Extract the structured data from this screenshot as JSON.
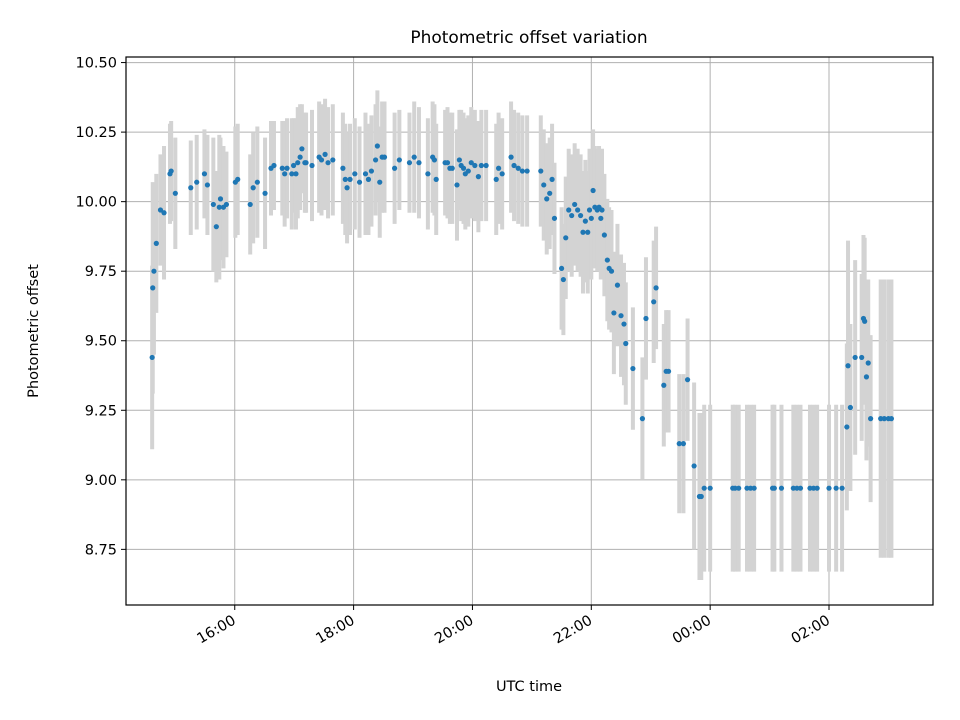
{
  "chart_data": {
    "type": "scatter",
    "title": "Photometric offset variation",
    "xlabel": "UTC time",
    "ylabel": "Photometric offset",
    "grid": true,
    "xlim": [
      14.17,
      27.75
    ],
    "ylim": [
      8.55,
      10.52
    ],
    "x_ticks": [
      {
        "value": 16,
        "label": "16:00"
      },
      {
        "value": 18,
        "label": "18:00"
      },
      {
        "value": 20,
        "label": "20:00"
      },
      {
        "value": 22,
        "label": "22:00"
      },
      {
        "value": 24,
        "label": "00:00"
      },
      {
        "value": 26,
        "label": "02:00"
      }
    ],
    "y_ticks": [
      {
        "value": 8.75,
        "label": "8.75"
      },
      {
        "value": 9.0,
        "label": "9.00"
      },
      {
        "value": 9.25,
        "label": "9.25"
      },
      {
        "value": 9.5,
        "label": "9.50"
      },
      {
        "value": 9.75,
        "label": "9.75"
      },
      {
        "value": 10.0,
        "label": "10.00"
      },
      {
        "value": 10.25,
        "label": "10.25"
      },
      {
        "value": 10.5,
        "label": "10.50"
      }
    ],
    "colors": {
      "point": "#1f77b4",
      "errorbar": "#d3d3d3",
      "grid": "#b0b0b0"
    },
    "series": [
      {
        "name": "offset",
        "points": [
          [
            14.61,
            9.44,
            0.33
          ],
          [
            14.62,
            9.69,
            0.38
          ],
          [
            14.64,
            9.75,
            0.3
          ],
          [
            14.68,
            9.85,
            0.25
          ],
          [
            14.75,
            9.97,
            0.2
          ],
          [
            14.81,
            9.96,
            0.24
          ],
          [
            14.91,
            10.1,
            0.18
          ],
          [
            14.93,
            10.11,
            0.18
          ],
          [
            15.0,
            10.03,
            0.2
          ],
          [
            15.26,
            10.05,
            0.17
          ],
          [
            15.36,
            10.07,
            0.17
          ],
          [
            15.49,
            10.1,
            0.16
          ],
          [
            15.54,
            10.06,
            0.18
          ],
          [
            15.64,
            9.99,
            0.24
          ],
          [
            15.69,
            9.91,
            0.2
          ],
          [
            15.74,
            9.98,
            0.26
          ],
          [
            15.76,
            10.01,
            0.22
          ],
          [
            15.81,
            9.98,
            0.22
          ],
          [
            15.86,
            9.99,
            0.19
          ],
          [
            16.01,
            10.07,
            0.2
          ],
          [
            16.05,
            10.08,
            0.2
          ],
          [
            16.26,
            9.99,
            0.18
          ],
          [
            16.31,
            10.05,
            0.2
          ],
          [
            16.38,
            10.07,
            0.2
          ],
          [
            16.51,
            10.03,
            0.2
          ],
          [
            16.61,
            10.12,
            0.17
          ],
          [
            16.66,
            10.13,
            0.16
          ],
          [
            16.8,
            10.12,
            0.17
          ],
          [
            16.84,
            10.1,
            0.19
          ],
          [
            16.88,
            10.12,
            0.18
          ],
          [
            16.96,
            10.1,
            0.2
          ],
          [
            16.99,
            10.13,
            0.17
          ],
          [
            17.03,
            10.1,
            0.2
          ],
          [
            17.06,
            10.14,
            0.2
          ],
          [
            17.1,
            10.16,
            0.19
          ],
          [
            17.13,
            10.19,
            0.16
          ],
          [
            17.18,
            10.14,
            0.18
          ],
          [
            17.2,
            10.14,
            0.18
          ],
          [
            17.3,
            10.13,
            0.2
          ],
          [
            17.42,
            10.16,
            0.2
          ],
          [
            17.46,
            10.15,
            0.2
          ],
          [
            17.52,
            10.17,
            0.2
          ],
          [
            17.57,
            10.14,
            0.2
          ],
          [
            17.65,
            10.15,
            0.2
          ],
          [
            17.82,
            10.12,
            0.2
          ],
          [
            17.86,
            10.08,
            0.2
          ],
          [
            17.89,
            10.05,
            0.2
          ],
          [
            17.94,
            10.08,
            0.2
          ],
          [
            18.02,
            10.1,
            0.2
          ],
          [
            18.1,
            10.07,
            0.2
          ],
          [
            18.2,
            10.1,
            0.22
          ],
          [
            18.25,
            10.08,
            0.2
          ],
          [
            18.3,
            10.11,
            0.2
          ],
          [
            18.37,
            10.15,
            0.2
          ],
          [
            18.4,
            10.2,
            0.2
          ],
          [
            18.44,
            10.07,
            0.2
          ],
          [
            18.48,
            10.16,
            0.2
          ],
          [
            18.52,
            10.16,
            0.2
          ],
          [
            18.69,
            10.12,
            0.2
          ],
          [
            18.77,
            10.15,
            0.18
          ],
          [
            18.94,
            10.14,
            0.18
          ],
          [
            19.02,
            10.16,
            0.2
          ],
          [
            19.1,
            10.14,
            0.2
          ],
          [
            19.25,
            10.1,
            0.2
          ],
          [
            19.33,
            10.16,
            0.2
          ],
          [
            19.36,
            10.15,
            0.2
          ],
          [
            19.39,
            10.08,
            0.2
          ],
          [
            19.54,
            10.14,
            0.19
          ],
          [
            19.58,
            10.14,
            0.2
          ],
          [
            19.62,
            10.12,
            0.2
          ],
          [
            19.66,
            10.12,
            0.2
          ],
          [
            19.74,
            10.06,
            0.2
          ],
          [
            19.78,
            10.15,
            0.18
          ],
          [
            19.81,
            10.13,
            0.2
          ],
          [
            19.85,
            10.12,
            0.2
          ],
          [
            19.88,
            10.1,
            0.2
          ],
          [
            19.93,
            10.11,
            0.2
          ],
          [
            19.98,
            10.14,
            0.2
          ],
          [
            20.04,
            10.13,
            0.2
          ],
          [
            20.1,
            10.09,
            0.2
          ],
          [
            20.15,
            10.13,
            0.2
          ],
          [
            20.23,
            10.13,
            0.2
          ],
          [
            20.4,
            10.08,
            0.2
          ],
          [
            20.44,
            10.12,
            0.2
          ],
          [
            20.5,
            10.1,
            0.2
          ],
          [
            20.65,
            10.16,
            0.2
          ],
          [
            20.7,
            10.13,
            0.2
          ],
          [
            20.77,
            10.12,
            0.2
          ],
          [
            20.84,
            10.11,
            0.2
          ],
          [
            20.92,
            10.11,
            0.2
          ],
          [
            21.15,
            10.11,
            0.2
          ],
          [
            21.2,
            10.06,
            0.2
          ],
          [
            21.25,
            10.01,
            0.2
          ],
          [
            21.3,
            10.03,
            0.2
          ],
          [
            21.34,
            10.08,
            0.2
          ],
          [
            21.38,
            9.94,
            0.2
          ],
          [
            21.5,
            9.76,
            0.22
          ],
          [
            21.53,
            9.72,
            0.2
          ],
          [
            21.57,
            9.87,
            0.22
          ],
          [
            21.62,
            9.97,
            0.22
          ],
          [
            21.67,
            9.95,
            0.22
          ],
          [
            21.72,
            9.99,
            0.22
          ],
          [
            21.77,
            9.97,
            0.22
          ],
          [
            21.82,
            9.95,
            0.22
          ],
          [
            21.86,
            9.89,
            0.22
          ],
          [
            21.9,
            9.93,
            0.22
          ],
          [
            21.94,
            9.89,
            0.22
          ],
          [
            21.97,
            9.97,
            0.22
          ],
          [
            22.0,
            9.94,
            0.22
          ],
          [
            22.03,
            10.04,
            0.22
          ],
          [
            22.06,
            9.98,
            0.22
          ],
          [
            22.1,
            9.97,
            0.22
          ],
          [
            22.13,
            9.98,
            0.22
          ],
          [
            22.16,
            9.94,
            0.22
          ],
          [
            22.18,
            9.97,
            0.22
          ],
          [
            22.22,
            9.88,
            0.22
          ],
          [
            22.27,
            9.79,
            0.22
          ],
          [
            22.3,
            9.76,
            0.22
          ],
          [
            22.34,
            9.75,
            0.22
          ],
          [
            22.38,
            9.6,
            0.22
          ],
          [
            22.44,
            9.7,
            0.22
          ],
          [
            22.5,
            9.59,
            0.22
          ],
          [
            22.55,
            9.56,
            0.22
          ],
          [
            22.58,
            9.49,
            0.22
          ],
          [
            22.7,
            9.4,
            0.22
          ],
          [
            22.86,
            9.22,
            0.22
          ],
          [
            22.92,
            9.58,
            0.22
          ],
          [
            23.05,
            9.64,
            0.22
          ],
          [
            23.09,
            9.69,
            0.22
          ],
          [
            23.22,
            9.34,
            0.22
          ],
          [
            23.26,
            9.39,
            0.22
          ],
          [
            23.3,
            9.39,
            0.22
          ],
          [
            23.48,
            9.13,
            0.25
          ],
          [
            23.55,
            9.13,
            0.25
          ],
          [
            23.62,
            9.36,
            0.22
          ],
          [
            23.73,
            9.05,
            0.3
          ],
          [
            23.82,
            8.94,
            0.3
          ],
          [
            23.85,
            8.94,
            0.3
          ],
          [
            23.9,
            8.97,
            0.3
          ],
          [
            24.0,
            8.97,
            0.3
          ],
          [
            24.38,
            8.97,
            0.3
          ],
          [
            24.42,
            8.97,
            0.3
          ],
          [
            24.48,
            8.97,
            0.3
          ],
          [
            24.62,
            8.97,
            0.3
          ],
          [
            24.68,
            8.97,
            0.3
          ],
          [
            24.74,
            8.97,
            0.3
          ],
          [
            25.05,
            8.97,
            0.3
          ],
          [
            25.08,
            8.97,
            0.3
          ],
          [
            25.2,
            8.97,
            0.3
          ],
          [
            25.4,
            8.97,
            0.3
          ],
          [
            25.46,
            8.97,
            0.3
          ],
          [
            25.52,
            8.97,
            0.3
          ],
          [
            25.68,
            8.97,
            0.3
          ],
          [
            25.74,
            8.97,
            0.3
          ],
          [
            25.8,
            8.97,
            0.3
          ],
          [
            26.0,
            8.97,
            0.3
          ],
          [
            26.12,
            8.97,
            0.3
          ],
          [
            26.22,
            8.97,
            0.3
          ],
          [
            26.3,
            9.19,
            0.3
          ],
          [
            26.32,
            9.41,
            0.45
          ],
          [
            26.36,
            9.26,
            0.3
          ],
          [
            26.44,
            9.44,
            0.35
          ],
          [
            26.55,
            9.44,
            0.3
          ],
          [
            26.58,
            9.58,
            0.3
          ],
          [
            26.6,
            9.57,
            0.3
          ],
          [
            26.63,
            9.37,
            0.3
          ],
          [
            26.66,
            9.42,
            0.3
          ],
          [
            26.7,
            9.22,
            0.3
          ],
          [
            26.87,
            9.22,
            0.5
          ],
          [
            26.93,
            9.22,
            0.5
          ],
          [
            27.0,
            9.22,
            0.5
          ],
          [
            27.05,
            9.22,
            0.5
          ]
        ]
      }
    ]
  }
}
